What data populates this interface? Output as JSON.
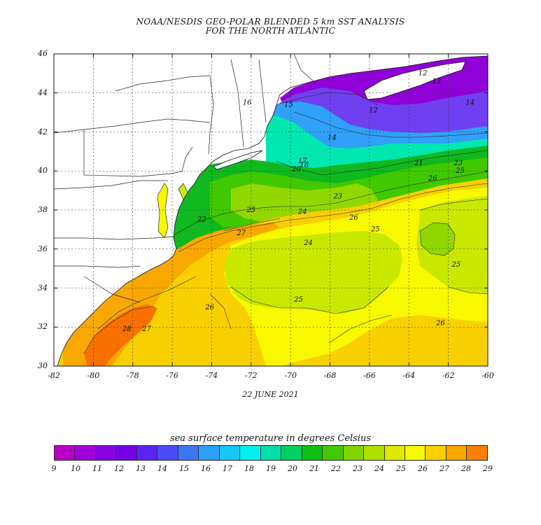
{
  "title": {
    "line1": "NOAA/NESDIS GEO-POLAR BLENDED 5 km SST ANALYSIS",
    "line2": "FOR THE NORTH ATLANTIC"
  },
  "date": "22 JUNE 2021",
  "colorbar_title": "sea surface temperature in degrees Celsius",
  "axes": {
    "x_ticks": [
      "-82",
      "-80",
      "-78",
      "-76",
      "-74",
      "-72",
      "-70",
      "-68",
      "-66",
      "-64",
      "-62",
      "-60"
    ],
    "y_ticks": [
      "46",
      "44",
      "42",
      "40",
      "38",
      "36",
      "34",
      "32",
      "30"
    ],
    "x_range": [
      -82,
      -60
    ],
    "y_range": [
      30,
      46
    ]
  },
  "colorbar": {
    "labels": [
      "9",
      "10",
      "11",
      "12",
      "13",
      "14",
      "15",
      "16",
      "17",
      "18",
      "19",
      "20",
      "21",
      "22",
      "23",
      "24",
      "25",
      "26",
      "27",
      "28",
      "29"
    ],
    "colors": [
      "#b800c8",
      "#a000d8",
      "#8a00e0",
      "#7400e8",
      "#5c24f0",
      "#4a4cf8",
      "#3a78f8",
      "#2aa0f8",
      "#18c8f8",
      "#00f0f0",
      "#00e0a8",
      "#00d060",
      "#10c010",
      "#44c800",
      "#80d400",
      "#b0e000",
      "#e0ea00",
      "#f8f800",
      "#f8d000",
      "#f8a800",
      "#f88000"
    ]
  },
  "contour_labels": [
    {
      "text": "12",
      "lon": -63.3,
      "lat": 44.9
    },
    {
      "text": "13",
      "lon": -62.6,
      "lat": 44.5
    },
    {
      "text": "14",
      "lon": -60.9,
      "lat": 43.4
    },
    {
      "text": "16",
      "lon": -72.2,
      "lat": 43.4
    },
    {
      "text": "15",
      "lon": -70.1,
      "lat": 43.3
    },
    {
      "text": "12",
      "lon": -65.8,
      "lat": 43.0
    },
    {
      "text": "14",
      "lon": -67.9,
      "lat": 41.6
    },
    {
      "text": "17",
      "lon": -69.4,
      "lat": 40.4
    },
    {
      "text": "20",
      "lon": -69.7,
      "lat": 40.0
    },
    {
      "text": "18",
      "lon": -69.3,
      "lat": 40.2
    },
    {
      "text": "21",
      "lon": -63.5,
      "lat": 40.3
    },
    {
      "text": "23",
      "lon": -61.5,
      "lat": 40.3
    },
    {
      "text": "25",
      "lon": -61.4,
      "lat": 39.9
    },
    {
      "text": "26",
      "lon": -62.8,
      "lat": 39.5
    },
    {
      "text": "23",
      "lon": -67.6,
      "lat": 38.6
    },
    {
      "text": "25",
      "lon": -72.0,
      "lat": 37.9
    },
    {
      "text": "24",
      "lon": -69.4,
      "lat": 37.8
    },
    {
      "text": "26",
      "lon": -66.8,
      "lat": 37.5
    },
    {
      "text": "22",
      "lon": -74.5,
      "lat": 37.4
    },
    {
      "text": "27",
      "lon": -72.5,
      "lat": 36.7
    },
    {
      "text": "25",
      "lon": -65.7,
      "lat": 36.9
    },
    {
      "text": "24",
      "lon": -69.1,
      "lat": 36.2
    },
    {
      "text": "25",
      "lon": -61.6,
      "lat": 35.1
    },
    {
      "text": "25",
      "lon": -69.6,
      "lat": 33.3
    },
    {
      "text": "26",
      "lon": -74.1,
      "lat": 32.9
    },
    {
      "text": "26",
      "lon": -62.4,
      "lat": 32.1
    },
    {
      "text": "28",
      "lon": -78.3,
      "lat": 31.8
    },
    {
      "text": "27",
      "lon": -77.3,
      "lat": 31.8
    }
  ],
  "sst_zones": [
    {
      "name": "zone-gulfstream-core",
      "temp": 28,
      "color": "#f87000"
    },
    {
      "name": "zone-gulfstream",
      "temp": 27,
      "color": "#f8a800"
    },
    {
      "name": "zone-sargasso",
      "temp": 26,
      "color": "#f8d000"
    },
    {
      "name": "zone-warm",
      "temp": 25,
      "color": "#f8f800"
    },
    {
      "name": "zone-yellowgreen",
      "temp": 24,
      "color": "#c8e800"
    },
    {
      "name": "zone-green-central",
      "temp": 23,
      "color": "#90d800"
    },
    {
      "name": "zone-slope",
      "temp": 22,
      "color": "#40c800"
    },
    {
      "name": "zone-shelf",
      "temp": 20,
      "color": "#10b820"
    },
    {
      "name": "zone-cool",
      "temp": 18,
      "color": "#00e8b0"
    },
    {
      "name": "zone-cold",
      "temp": 16,
      "color": "#30a0f8"
    },
    {
      "name": "zone-gulf-maine",
      "temp": 13,
      "color": "#7040f0"
    },
    {
      "name": "zone-scotian",
      "temp": 11,
      "color": "#9000d8"
    }
  ]
}
